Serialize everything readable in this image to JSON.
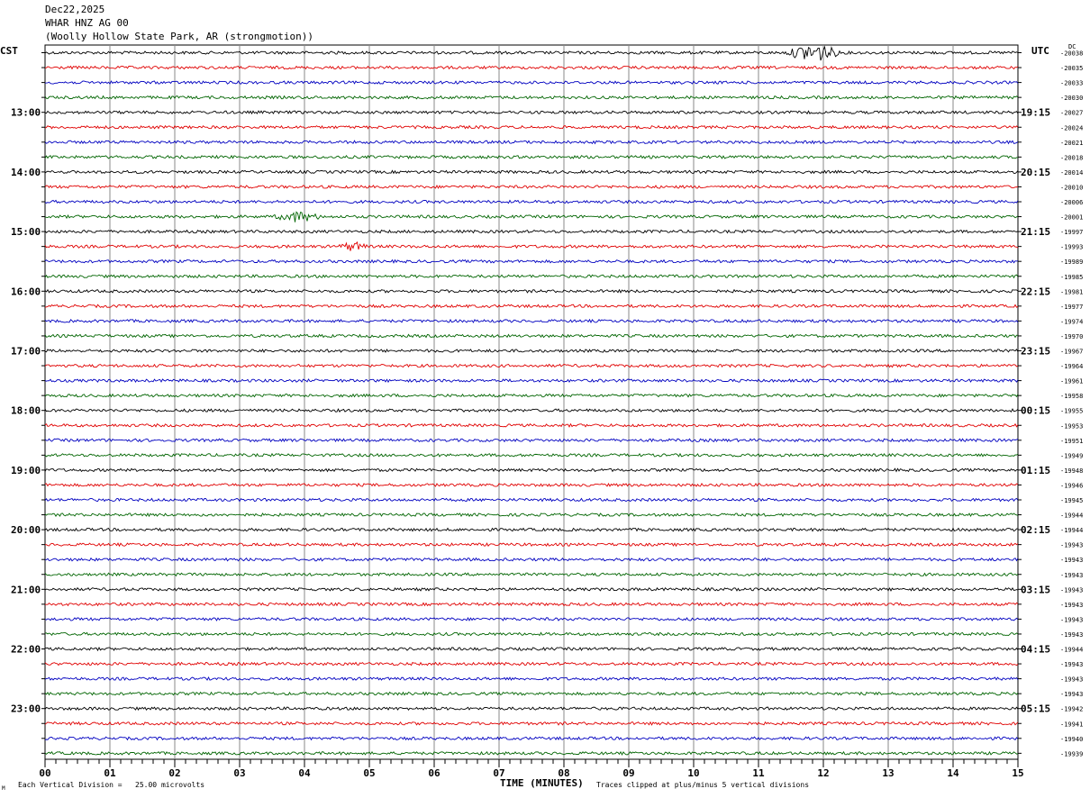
{
  "header": {
    "date": "Dec22,2025",
    "station": "WHAR HNZ AG 00",
    "location": "(Woolly Hollow State Park, AR (strongmotion))"
  },
  "labels": {
    "left_zone": "CST",
    "right_zone": "UTC",
    "dc": "DC",
    "xlabel": "TIME (MINUTES)",
    "scale": "Each Vertical Division =   25.00 microvolts",
    "clip": "Traces clipped at plus/minus 5 vertical divisions",
    "corner_mark": "M"
  },
  "chart_data": {
    "type": "line",
    "xlabel": "TIME (MINUTES)",
    "xlim": [
      0,
      15
    ],
    "x_ticks": [
      "00",
      "01",
      "02",
      "03",
      "04",
      "05",
      "06",
      "07",
      "08",
      "09",
      "10",
      "11",
      "12",
      "13",
      "14",
      "15"
    ],
    "trace_count": 48,
    "trace_colors": [
      "#000000",
      "#e00000",
      "#0000c0",
      "#006400"
    ],
    "left_hour_labels": [
      {
        "trace": 4,
        "label": "13:00"
      },
      {
        "trace": 8,
        "label": "14:00"
      },
      {
        "trace": 12,
        "label": "15:00"
      },
      {
        "trace": 16,
        "label": "16:00"
      },
      {
        "trace": 20,
        "label": "17:00"
      },
      {
        "trace": 24,
        "label": "18:00"
      },
      {
        "trace": 28,
        "label": "19:00"
      },
      {
        "trace": 32,
        "label": "20:00"
      },
      {
        "trace": 36,
        "label": "21:00"
      },
      {
        "trace": 40,
        "label": "22:00"
      },
      {
        "trace": 44,
        "label": "23:00"
      }
    ],
    "right_hour_labels": [
      {
        "trace": 4,
        "label": "19:15"
      },
      {
        "trace": 8,
        "label": "20:15"
      },
      {
        "trace": 12,
        "label": "21:15"
      },
      {
        "trace": 16,
        "label": "22:15"
      },
      {
        "trace": 20,
        "label": "23:15"
      },
      {
        "trace": 24,
        "label": "00:15"
      },
      {
        "trace": 28,
        "label": "01:15"
      },
      {
        "trace": 32,
        "label": "02:15"
      },
      {
        "trace": 36,
        "label": "03:15"
      },
      {
        "trace": 40,
        "label": "04:15"
      },
      {
        "trace": 44,
        "label": "05:15"
      }
    ],
    "dc_offsets": [
      "-20038",
      "-20035",
      "-20033",
      "-20030",
      "-20027",
      "-20024",
      "-20021",
      "-20018",
      "-20014",
      "-20010",
      "-20006",
      "-20001",
      "-19997",
      "-19993",
      "-19989",
      "-19985",
      "-19981",
      "-19977",
      "-19974",
      "-19970",
      "-19967",
      "-19964",
      "-19961",
      "-19958",
      "-19955",
      "-19953",
      "-19951",
      "-19949",
      "-19948",
      "-19946",
      "-19945",
      "-19944",
      "-19944",
      "-19943",
      "-19943",
      "-19943",
      "-19943",
      "-19943",
      "-19943",
      "-19943",
      "-19944",
      "-19943",
      "-19943",
      "-19943",
      "-19942",
      "-19941",
      "-19940",
      "-19939"
    ],
    "events": [
      {
        "trace": 0,
        "start_min": 11.4,
        "end_min": 12.3,
        "amplitude_div": 1.2
      },
      {
        "trace": 11,
        "start_min": 3.5,
        "end_min": 4.3,
        "amplitude_div": 0.6
      },
      {
        "trace": 13,
        "start_min": 4.5,
        "end_min": 5.0,
        "amplitude_div": 0.5
      }
    ]
  }
}
